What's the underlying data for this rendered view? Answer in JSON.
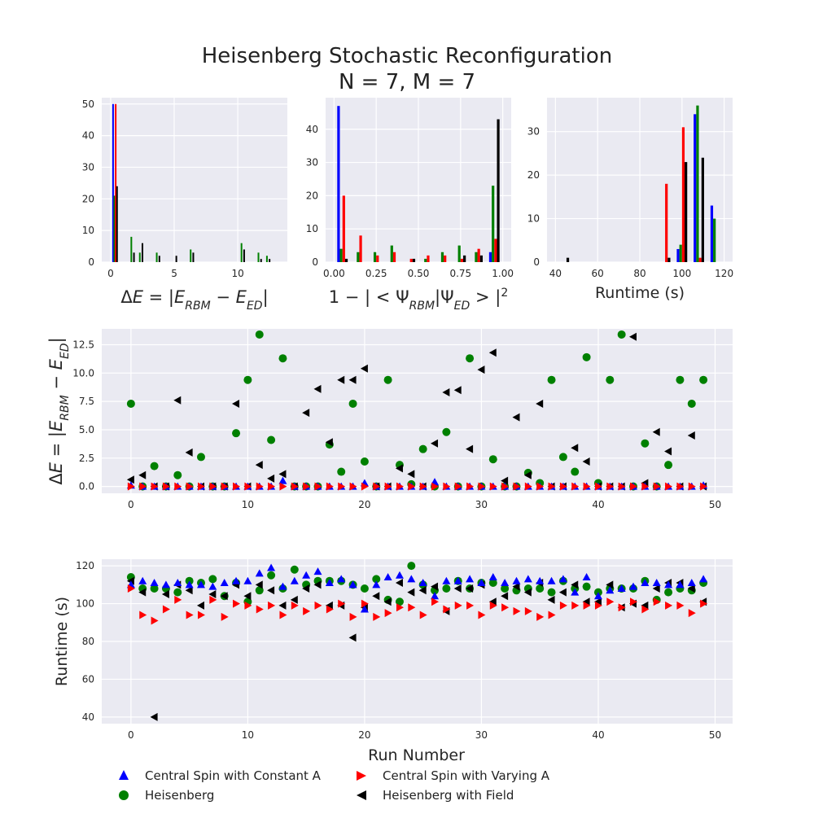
{
  "title": "Heisenberg Stochastic Reconfiguration",
  "subtitle": "N = 7, M = 7",
  "colors": {
    "constA": "#0000ff",
    "varyA": "#ff0000",
    "heis": "#008000",
    "field": "#000000"
  },
  "legend": [
    {
      "series": "constA",
      "label": "Central Spin with Constant A",
      "marker": "triangle-up"
    },
    {
      "series": "varyA",
      "label": "Central Spin with Varying A",
      "marker": "triangle-right"
    },
    {
      "series": "heis",
      "label": "Heisenberg",
      "marker": "circle"
    },
    {
      "series": "field",
      "label": "Heisenberg with Field",
      "marker": "triangle-left"
    }
  ],
  "chart_data": [
    {
      "type": "bar",
      "panel": "hist_energy",
      "xlabel": "ΔE = |E_RBM − E_ED|",
      "xlim": [
        -0.7,
        13.9
      ],
      "ylim": [
        0,
        52
      ],
      "xticks": [
        0,
        5,
        10
      ],
      "yticks": [
        0,
        10,
        20,
        30,
        40,
        50
      ],
      "bin_width": 0.667,
      "bins_start": [
        0,
        0.667,
        1.333,
        2.0,
        2.667,
        3.333,
        4.0,
        4.667,
        5.333,
        6.0,
        6.667,
        7.333,
        8.0,
        8.667,
        9.333,
        10.0,
        10.667,
        11.333,
        12.0,
        12.667
      ],
      "series": [
        {
          "key": "constA",
          "values": [
            50,
            0,
            0,
            0,
            0,
            0,
            0,
            0,
            0,
            0,
            0,
            0,
            0,
            0,
            0,
            0,
            0,
            0,
            0,
            0
          ]
        },
        {
          "key": "heis",
          "values": [
            21,
            0,
            8,
            3,
            0,
            3,
            0,
            0,
            0,
            4,
            0,
            0,
            0,
            0,
            0,
            6,
            0,
            3,
            2,
            0
          ]
        },
        {
          "key": "varyA",
          "values": [
            50,
            0,
            0,
            0,
            0,
            0,
            0,
            0,
            0,
            0,
            0,
            0,
            0,
            0,
            0,
            0,
            0,
            0,
            0,
            0
          ]
        },
        {
          "key": "field",
          "values": [
            24,
            0,
            3,
            6,
            0,
            2,
            0,
            2,
            0,
            3,
            0,
            0,
            0,
            0,
            0,
            4,
            0,
            1,
            1,
            0
          ]
        }
      ]
    },
    {
      "type": "bar",
      "panel": "hist_fidelity",
      "xlabel": "1 − |<Ψ_RBM|Ψ_ED>|^2",
      "xlim": [
        -0.05,
        1.05
      ],
      "ylim": [
        0,
        49.5
      ],
      "xticks": [
        "0.00",
        "0.25",
        "0.50",
        "0.75",
        "1.00"
      ],
      "yticks": [
        0,
        10,
        20,
        30,
        40
      ],
      "bin_width": 0.1,
      "bins_start": [
        0,
        0.1,
        0.2,
        0.3,
        0.4,
        0.5,
        0.6,
        0.7,
        0.8,
        0.9
      ],
      "series": [
        {
          "key": "constA",
          "values": [
            47,
            0,
            0,
            0,
            0,
            0,
            0,
            0,
            0,
            3
          ]
        },
        {
          "key": "heis",
          "values": [
            4,
            3,
            3,
            5,
            0,
            1,
            3,
            5,
            3,
            23
          ]
        },
        {
          "key": "varyA",
          "values": [
            20,
            8,
            2,
            3,
            1,
            2,
            2,
            1,
            4,
            7
          ]
        },
        {
          "key": "field",
          "values": [
            1,
            0,
            0,
            0,
            1,
            0,
            0,
            2,
            2,
            43
          ]
        }
      ]
    },
    {
      "type": "bar",
      "panel": "hist_runtime",
      "xlabel": "Runtime (s)",
      "xlim": [
        36,
        124
      ],
      "ylim": [
        0,
        37.8
      ],
      "xticks": [
        40,
        60,
        80,
        100,
        120
      ],
      "yticks": [
        0,
        10,
        20,
        30
      ],
      "bin_width": 8,
      "bins_start": [
        40,
        48,
        56,
        64,
        72,
        80,
        88,
        96,
        104,
        112
      ],
      "series": [
        {
          "key": "constA",
          "values": [
            0,
            0,
            0,
            0,
            0,
            0,
            0,
            3,
            34,
            13
          ]
        },
        {
          "key": "heis",
          "values": [
            0,
            0,
            0,
            0,
            0,
            0,
            0,
            4,
            36,
            10
          ]
        },
        {
          "key": "varyA",
          "values": [
            0,
            0,
            0,
            0,
            0,
            0,
            18,
            31,
            1,
            0
          ]
        },
        {
          "key": "field",
          "values": [
            1,
            0,
            0,
            0,
            0,
            0,
            1,
            23,
            24,
            0
          ]
        }
      ]
    },
    {
      "type": "scatter",
      "panel": "scatter_energy",
      "ylabel": "ΔE = |E_RBM − E_ED|",
      "xlim": [
        -2.5,
        51.5
      ],
      "ylim": [
        -0.6,
        13.9
      ],
      "xticks": [
        0,
        10,
        20,
        30,
        40,
        50
      ],
      "yticks": [
        "0.0",
        "2.5",
        "5.0",
        "7.5",
        "10.0",
        "12.5"
      ],
      "series": [
        {
          "key": "constA",
          "y": [
            0.1,
            0,
            0,
            0,
            0,
            0,
            0,
            0,
            0,
            0,
            0,
            0,
            0,
            0.5,
            0,
            0,
            0,
            0,
            0,
            0,
            0.3,
            0,
            0,
            0,
            0,
            0,
            0.4,
            0,
            0,
            0,
            0,
            0,
            0,
            0,
            0,
            0,
            0,
            0,
            0,
            0,
            0,
            0,
            0,
            0,
            0,
            0,
            0,
            0,
            0,
            0.1
          ]
        },
        {
          "key": "varyA",
          "y": [
            0,
            0,
            0,
            0,
            0,
            0,
            0,
            0,
            0,
            0,
            0,
            0,
            0,
            0,
            0,
            0,
            0,
            0,
            0,
            0,
            0,
            0,
            0,
            0,
            0,
            0,
            0,
            0,
            0,
            0,
            0,
            0,
            0,
            0,
            0,
            0,
            0,
            0,
            0,
            0,
            0,
            0,
            0,
            0,
            0,
            0,
            0,
            0,
            0,
            0
          ]
        },
        {
          "key": "heis",
          "y": [
            7.3,
            0,
            1.8,
            0,
            1.0,
            0,
            2.6,
            0,
            0,
            4.7,
            9.4,
            13.4,
            4.1,
            11.3,
            0,
            0,
            0,
            3.7,
            1.3,
            7.3,
            2.2,
            0,
            9.4,
            1.9,
            0.2,
            3.3,
            0,
            4.8,
            0,
            11.3,
            0,
            2.4,
            0,
            0,
            1.2,
            0.3,
            9.4,
            2.6,
            1.3,
            11.4,
            0.3,
            9.4,
            13.4,
            0,
            3.8,
            0,
            1.9,
            9.4,
            7.3,
            9.4
          ]
        },
        {
          "key": "field",
          "y": [
            0.6,
            1.0,
            0,
            0,
            7.6,
            3.0,
            0,
            0,
            0,
            7.3,
            0,
            1.9,
            0.7,
            1.1,
            0,
            6.5,
            8.6,
            3.9,
            9.4,
            9.4,
            10.4,
            0,
            0,
            1.6,
            1.1,
            0,
            3.8,
            8.3,
            8.5,
            3.3,
            10.3,
            11.8,
            0.5,
            6.1,
            1.0,
            7.3,
            0,
            0,
            3.4,
            2.2,
            0,
            0,
            0,
            13.2,
            0.3,
            4.8,
            3.1,
            0,
            4.5,
            0
          ]
        }
      ]
    },
    {
      "type": "scatter",
      "panel": "scatter_runtime",
      "xlabel": "Run Number",
      "ylabel": "Runtime (s)",
      "xlim": [
        -2.5,
        51.5
      ],
      "ylim": [
        36.5,
        123.5
      ],
      "xticks": [
        0,
        10,
        20,
        30,
        40,
        50
      ],
      "yticks": [
        40,
        60,
        80,
        100,
        120
      ],
      "series": [
        {
          "key": "constA",
          "y": [
            110,
            112,
            111,
            110,
            111,
            110,
            110,
            109,
            111,
            112,
            112,
            116,
            119,
            109,
            112,
            115,
            117,
            111,
            113,
            110,
            97,
            110,
            114,
            115,
            113,
            111,
            104,
            112,
            112,
            113,
            111,
            114,
            111,
            112,
            113,
            112,
            112,
            113,
            106,
            114,
            104,
            107,
            108,
            109,
            111,
            111,
            110,
            110,
            111,
            113
          ]
        },
        {
          "key": "varyA",
          "y": [
            108,
            94,
            91,
            97,
            102,
            94,
            94,
            102,
            93,
            100,
            99,
            97,
            99,
            94,
            99,
            96,
            99,
            97,
            100,
            93,
            100,
            93,
            95,
            98,
            98,
            94,
            101,
            97,
            99,
            99,
            94,
            99,
            98,
            96,
            96,
            93,
            94,
            99,
            99,
            99,
            99,
            101,
            98,
            101,
            97,
            101,
            99,
            99,
            95,
            100
          ]
        },
        {
          "key": "heis",
          "y": [
            114,
            108,
            108,
            108,
            106,
            112,
            111,
            113,
            104,
            111,
            101,
            107,
            115,
            108,
            118,
            110,
            112,
            112,
            112,
            110,
            108,
            113,
            102,
            101,
            120,
            110,
            107,
            108,
            112,
            108,
            111,
            111,
            108,
            107,
            108,
            108,
            106,
            112,
            108,
            109,
            106,
            108,
            108,
            108,
            112,
            102,
            106,
            108,
            107,
            111
          ]
        },
        {
          "key": "field",
          "y": [
            112,
            106,
            40,
            105,
            110,
            107,
            99,
            105,
            104,
            110,
            104,
            110,
            107,
            99,
            102,
            108,
            110,
            99,
            99,
            82,
            98,
            104,
            101,
            111,
            106,
            107,
            109,
            96,
            108,
            108,
            110,
            101,
            104,
            109,
            106,
            111,
            102,
            106,
            110,
            101,
            101,
            110,
            98,
            100,
            99,
            108,
            111,
            111,
            108,
            101
          ]
        }
      ]
    }
  ]
}
